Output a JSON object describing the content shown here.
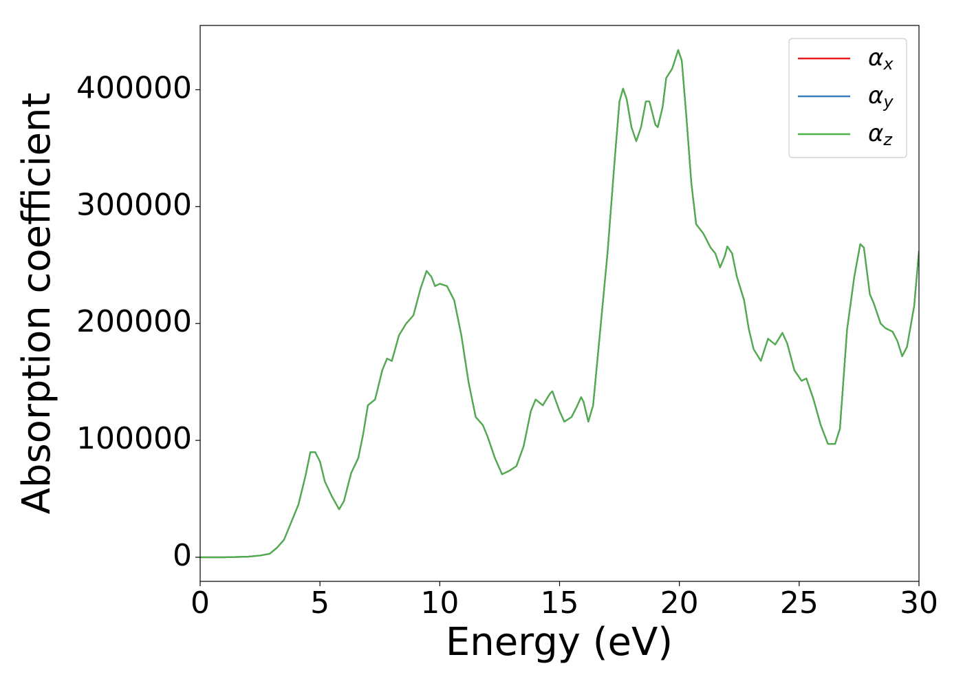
{
  "chart_data": {
    "type": "line",
    "xlabel": "Energy (eV)",
    "ylabel": "Absorption coefficient",
    "x": [
      0,
      1,
      2,
      2.5,
      2.9,
      3.2,
      3.5,
      3.8,
      4.1,
      4.4,
      4.6,
      4.8,
      5.0,
      5.2,
      5.5,
      5.8,
      6.0,
      6.3,
      6.6,
      6.8,
      7.0,
      7.3,
      7.6,
      7.8,
      8.0,
      8.3,
      8.6,
      8.9,
      9.2,
      9.45,
      9.65,
      9.8,
      10.0,
      10.3,
      10.6,
      10.9,
      11.2,
      11.5,
      11.8,
      12.0,
      12.3,
      12.6,
      12.9,
      13.2,
      13.5,
      13.8,
      14.0,
      14.3,
      14.6,
      14.7,
      15.0,
      15.2,
      15.5,
      15.7,
      15.9,
      16.0,
      16.2,
      16.4,
      16.7,
      17.0,
      17.3,
      17.5,
      17.65,
      17.8,
      18.0,
      18.2,
      18.4,
      18.6,
      18.75,
      19.0,
      19.1,
      19.3,
      19.45,
      19.7,
      19.95,
      20.1,
      20.3,
      20.5,
      20.7,
      21.0,
      21.3,
      21.5,
      21.7,
      21.9,
      22.0,
      22.2,
      22.4,
      22.7,
      22.9,
      23.1,
      23.4,
      23.7,
      24.0,
      24.3,
      24.5,
      24.8,
      25.1,
      25.3,
      25.6,
      25.9,
      26.2,
      26.5,
      26.7,
      27.0,
      27.3,
      27.55,
      27.7,
      27.95,
      28.1,
      28.4,
      28.6,
      28.9,
      29.1,
      29.3,
      29.5,
      29.8,
      30.0
    ],
    "series": [
      {
        "name": "αx",
        "color": "#e41a1c",
        "values": [
          0,
          0,
          500,
          1500,
          3000,
          8000,
          15000,
          30000,
          45000,
          70000,
          90000,
          90000,
          82000,
          65000,
          52000,
          41000,
          48000,
          72000,
          85000,
          105000,
          130000,
          135000,
          160000,
          170000,
          168000,
          190000,
          200000,
          207000,
          230000,
          245000,
          240000,
          232000,
          234000,
          232000,
          220000,
          190000,
          150000,
          120000,
          113000,
          103000,
          85000,
          71000,
          74000,
          78000,
          95000,
          125000,
          135000,
          130000,
          140000,
          142000,
          125000,
          116000,
          120000,
          128000,
          137000,
          133000,
          116000,
          130000,
          195000,
          260000,
          340000,
          390000,
          401000,
          392000,
          368000,
          356000,
          368000,
          390000,
          390000,
          370000,
          368000,
          385000,
          410000,
          418000,
          434000,
          425000,
          375000,
          320000,
          285000,
          277000,
          265000,
          260000,
          248000,
          258000,
          266000,
          260000,
          240000,
          220000,
          195000,
          178000,
          168000,
          187000,
          182000,
          192000,
          183000,
          160000,
          151000,
          153000,
          135000,
          113000,
          97000,
          97000,
          110000,
          195000,
          240000,
          268000,
          265000,
          225000,
          218000,
          200000,
          196000,
          193000,
          185000,
          172000,
          180000,
          215000,
          262000
        ]
      },
      {
        "name": "αy",
        "color": "#377eb8",
        "values": [
          0,
          0,
          500,
          1500,
          3000,
          8000,
          15000,
          30000,
          45000,
          70000,
          90000,
          90000,
          82000,
          65000,
          52000,
          41000,
          48000,
          72000,
          85000,
          105000,
          130000,
          135000,
          160000,
          170000,
          168000,
          190000,
          200000,
          207000,
          230000,
          245000,
          240000,
          232000,
          234000,
          232000,
          220000,
          190000,
          150000,
          120000,
          113000,
          103000,
          85000,
          71000,
          74000,
          78000,
          95000,
          125000,
          135000,
          130000,
          140000,
          142000,
          125000,
          116000,
          120000,
          128000,
          137000,
          133000,
          116000,
          130000,
          195000,
          260000,
          340000,
          390000,
          401000,
          392000,
          368000,
          356000,
          368000,
          390000,
          390000,
          370000,
          368000,
          385000,
          410000,
          418000,
          434000,
          425000,
          375000,
          320000,
          285000,
          277000,
          265000,
          260000,
          248000,
          258000,
          266000,
          260000,
          240000,
          220000,
          195000,
          178000,
          168000,
          187000,
          182000,
          192000,
          183000,
          160000,
          151000,
          153000,
          135000,
          113000,
          97000,
          97000,
          110000,
          195000,
          240000,
          268000,
          265000,
          225000,
          218000,
          200000,
          196000,
          193000,
          185000,
          172000,
          180000,
          215000,
          262000
        ]
      },
      {
        "name": "αz",
        "color": "#4daf4a",
        "values": [
          0,
          0,
          500,
          1500,
          3000,
          8000,
          15000,
          30000,
          45000,
          70000,
          90000,
          90000,
          82000,
          65000,
          52000,
          41000,
          48000,
          72000,
          85000,
          105000,
          130000,
          135000,
          160000,
          170000,
          168000,
          190000,
          200000,
          207000,
          230000,
          245000,
          240000,
          232000,
          234000,
          232000,
          220000,
          190000,
          150000,
          120000,
          113000,
          103000,
          85000,
          71000,
          74000,
          78000,
          95000,
          125000,
          135000,
          130000,
          140000,
          142000,
          125000,
          116000,
          120000,
          128000,
          137000,
          133000,
          116000,
          130000,
          195000,
          260000,
          340000,
          390000,
          401000,
          392000,
          368000,
          356000,
          368000,
          390000,
          390000,
          370000,
          368000,
          385000,
          410000,
          418000,
          434000,
          425000,
          375000,
          320000,
          285000,
          277000,
          265000,
          260000,
          248000,
          258000,
          266000,
          260000,
          240000,
          220000,
          195000,
          178000,
          168000,
          187000,
          182000,
          192000,
          183000,
          160000,
          151000,
          153000,
          135000,
          113000,
          97000,
          97000,
          110000,
          195000,
          240000,
          268000,
          265000,
          225000,
          218000,
          200000,
          196000,
          193000,
          185000,
          172000,
          180000,
          215000,
          262000
        ]
      }
    ],
    "xlim": [
      0,
      30
    ],
    "xticks": [
      0,
      5,
      10,
      15,
      20,
      25,
      30
    ],
    "ylim": [
      -20600,
      455000
    ],
    "yticks": [
      0,
      100000,
      200000,
      300000,
      400000
    ],
    "grid": false,
    "legend": "upper right"
  }
}
